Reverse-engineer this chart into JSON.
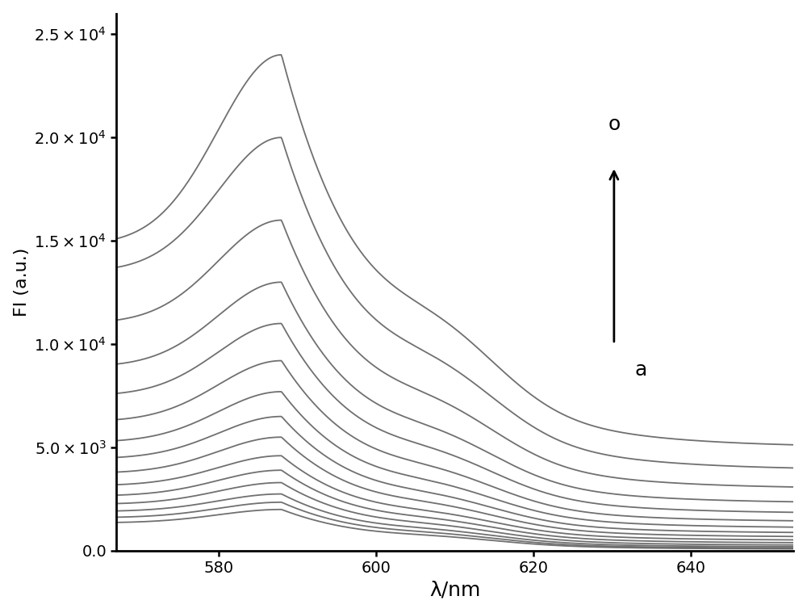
{
  "x_start": 567,
  "x_end": 653,
  "num_curves": 15,
  "peak_wavelength": 588,
  "line_color": "#606060",
  "background_color": "#ffffff",
  "ylabel": "FI (a.u.)",
  "xlabel": "λ/nm",
  "xlim": [
    567,
    653
  ],
  "ylim": [
    0,
    26000
  ],
  "yticks": [
    0,
    5000,
    10000,
    15000,
    20000,
    25000
  ],
  "xticks": [
    580,
    600,
    620,
    640
  ],
  "ytick_labels": [
    "0.0",
    "5.0×10^3",
    "1.0×10^4",
    "1.5×10^4",
    "2.0×10^4",
    "2.5×10^4"
  ],
  "arrow_label_top": "o",
  "arrow_label_bottom": "a",
  "axis_fontsize": 16,
  "tick_fontsize": 14,
  "annotation_fontsize": 16,
  "peak_vals": [
    2000,
    2350,
    2750,
    3300,
    3900,
    4600,
    5500,
    6500,
    7700,
    9200,
    11000,
    13000,
    16000,
    20000,
    24000
  ],
  "tail_vals": [
    80,
    120,
    180,
    260,
    370,
    500,
    660,
    850,
    1100,
    1400,
    1800,
    2300,
    3000,
    3900,
    5000
  ],
  "left_vals": [
    1350,
    1600,
    1900,
    2250,
    2650,
    3150,
    3750,
    4450,
    5250,
    6250,
    7500,
    8900,
    11000,
    13500,
    14800
  ]
}
